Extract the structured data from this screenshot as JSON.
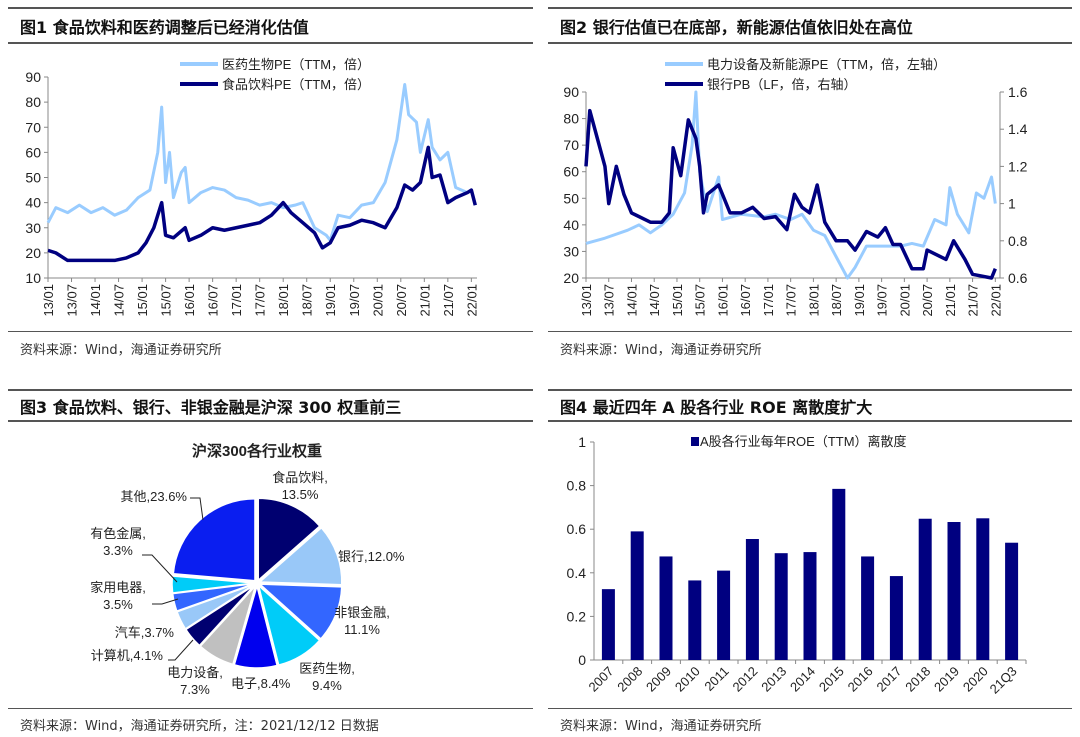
{
  "figures": [
    {
      "title": "图1  食品饮料和医药调整后已经消化估值",
      "source": "资料来源：Wind，海通证券研究所"
    },
    {
      "title": "图2  银行估值已在底部，新能源估值依旧处在高位",
      "source": "资料来源：Wind，海通证券研究所"
    },
    {
      "title": "图3  食品饮料、银行、非银金融是沪深 300 权重前三",
      "source": "资料来源：Wind，海通证券研究所，注：2021/12/12 日数据"
    },
    {
      "title": "图4  最近四年 A 股各行业 ROE 离散度扩大",
      "source": "资料来源：Wind，海通证券研究所"
    }
  ],
  "chart_data": [
    {
      "type": "line",
      "title": "",
      "ylim": [
        10,
        90
      ],
      "yticks": [
        "10",
        "20",
        "30",
        "40",
        "50",
        "60",
        "70",
        "80",
        "90"
      ],
      "xticks": [
        "13/01",
        "13/07",
        "14/01",
        "14/07",
        "15/01",
        "15/07",
        "16/01",
        "16/07",
        "17/01",
        "17/07",
        "18/01",
        "18/07",
        "19/01",
        "19/07",
        "20/01",
        "20/07",
        "21/01",
        "21/07",
        "22/01"
      ],
      "grid": false,
      "legend": "top",
      "series": [
        {
          "name": "医药生物PE（TTM，倍）",
          "color": "#99ccff",
          "x": [
            "2013-01",
            "2013-03",
            "2013-06",
            "2013-09",
            "2013-12",
            "2014-03",
            "2014-06",
            "2014-09",
            "2014-12",
            "2015-03",
            "2015-05",
            "2015-06",
            "2015-07",
            "2015-08",
            "2015-09",
            "2015-11",
            "2015-12",
            "2016-01",
            "2016-04",
            "2016-07",
            "2016-10",
            "2017-01",
            "2017-04",
            "2017-07",
            "2017-10",
            "2018-01",
            "2018-04",
            "2018-06",
            "2018-09",
            "2018-12",
            "2019-01",
            "2019-03",
            "2019-06",
            "2019-09",
            "2019-12",
            "2020-03",
            "2020-06",
            "2020-08",
            "2020-09",
            "2020-11",
            "2020-12",
            "2021-02",
            "2021-03",
            "2021-05",
            "2021-07",
            "2021-09",
            "2021-12",
            "2022-01",
            "2022-02"
          ],
          "y": [
            32,
            38,
            36,
            39,
            36,
            38,
            35,
            37,
            42,
            45,
            60,
            78,
            48,
            60,
            42,
            52,
            54,
            40,
            44,
            46,
            45,
            42,
            41,
            39,
            40,
            38,
            39,
            40,
            30,
            27,
            25,
            35,
            34,
            39,
            40,
            48,
            65,
            87,
            75,
            72,
            60,
            73,
            62,
            57,
            60,
            46,
            44,
            45,
            39
          ]
        },
        {
          "name": "食品饮料PE（TTM，倍）",
          "color": "#000080",
          "x": [
            "2013-01",
            "2013-03",
            "2013-06",
            "2013-12",
            "2014-06",
            "2014-09",
            "2014-12",
            "2015-02",
            "2015-04",
            "2015-06",
            "2015-07",
            "2015-09",
            "2015-12",
            "2016-01",
            "2016-04",
            "2016-07",
            "2016-10",
            "2017-01",
            "2017-04",
            "2017-07",
            "2017-10",
            "2018-01",
            "2018-03",
            "2018-06",
            "2018-09",
            "2018-11",
            "2019-01",
            "2019-03",
            "2019-06",
            "2019-09",
            "2019-12",
            "2020-03",
            "2020-06",
            "2020-08",
            "2020-10",
            "2020-12",
            "2021-02",
            "2021-03",
            "2021-05",
            "2021-07",
            "2021-09",
            "2021-12",
            "2022-01",
            "2022-02"
          ],
          "y": [
            21,
            20,
            17,
            17,
            17,
            18,
            20,
            24,
            30,
            40,
            27,
            26,
            30,
            25,
            27,
            30,
            29,
            30,
            31,
            32,
            35,
            40,
            36,
            32,
            28,
            22,
            24,
            30,
            31,
            33,
            32,
            30,
            38,
            47,
            45,
            48,
            62,
            50,
            51,
            40,
            42,
            44,
            45,
            39
          ]
        }
      ]
    },
    {
      "type": "line",
      "title": "",
      "ylim": [
        20,
        90
      ],
      "y2lim": [
        0.6,
        1.6
      ],
      "yticks": [
        "20",
        "30",
        "40",
        "50",
        "60",
        "70",
        "80",
        "90"
      ],
      "y2ticks": [
        "0.6",
        "0.8",
        "1",
        "1.2",
        "1.4",
        "1.6"
      ],
      "xticks": [
        "13/01",
        "13/07",
        "14/01",
        "14/07",
        "15/01",
        "15/07",
        "16/01",
        "16/07",
        "17/01",
        "17/07",
        "18/01",
        "18/07",
        "19/01",
        "19/07",
        "20/01",
        "20/07",
        "21/01",
        "21/07",
        "22/01"
      ],
      "grid": false,
      "legend": "top",
      "series": [
        {
          "name": "电力设备及新能源PE（TTM，倍，左轴）",
          "color": "#99ccff",
          "axis": "left",
          "x": [
            "2013-01",
            "2013-06",
            "2013-12",
            "2014-03",
            "2014-06",
            "2014-09",
            "2014-12",
            "2015-03",
            "2015-05",
            "2015-06",
            "2015-07",
            "2015-09",
            "2015-12",
            "2016-01",
            "2016-06",
            "2016-12",
            "2017-03",
            "2017-07",
            "2017-10",
            "2018-01",
            "2018-04",
            "2018-07",
            "2018-10",
            "2018-12",
            "2019-03",
            "2019-06",
            "2019-12",
            "2020-03",
            "2020-06",
            "2020-09",
            "2020-12",
            "2021-01",
            "2021-03",
            "2021-06",
            "2021-08",
            "2021-10",
            "2021-12",
            "2022-01"
          ],
          "y": [
            33,
            35,
            38,
            40,
            37,
            40,
            44,
            52,
            70,
            90,
            60,
            45,
            58,
            42,
            44,
            43,
            44,
            42,
            44,
            38,
            36,
            28,
            20,
            24,
            32,
            32,
            32,
            33,
            32,
            42,
            40,
            54,
            44,
            37,
            52,
            50,
            58,
            48
          ]
        },
        {
          "name": "银行PB（LF，倍，右轴）",
          "color": "#000080",
          "axis": "right",
          "x": [
            "2013-01",
            "2013-02",
            "2013-04",
            "2013-06",
            "2013-07",
            "2013-09",
            "2013-11",
            "2014-01",
            "2014-06",
            "2014-09",
            "2014-11",
            "2014-12",
            "2015-02",
            "2015-04",
            "2015-06",
            "2015-07",
            "2015-08",
            "2015-09",
            "2015-12",
            "2016-03",
            "2016-06",
            "2016-09",
            "2016-12",
            "2017-03",
            "2017-06",
            "2017-08",
            "2017-10",
            "2017-12",
            "2018-02",
            "2018-04",
            "2018-07",
            "2018-10",
            "2018-12",
            "2019-03",
            "2019-06",
            "2019-08",
            "2019-10",
            "2019-12",
            "2020-03",
            "2020-06",
            "2020-07",
            "2020-12",
            "2021-02",
            "2021-05",
            "2021-07",
            "2021-12",
            "2022-01"
          ],
          "y": [
            1.2,
            1.5,
            1.35,
            1.2,
            1.0,
            1.2,
            1.05,
            0.95,
            0.9,
            0.9,
            0.95,
            1.3,
            1.15,
            1.45,
            1.35,
            1.2,
            0.95,
            1.05,
            1.1,
            0.95,
            0.95,
            0.98,
            0.92,
            0.93,
            0.86,
            1.05,
            0.98,
            0.95,
            1.1,
            0.9,
            0.8,
            0.8,
            0.75,
            0.85,
            0.82,
            0.87,
            0.78,
            0.78,
            0.65,
            0.65,
            0.75,
            0.7,
            0.8,
            0.7,
            0.62,
            0.6,
            0.65
          ]
        }
      ]
    },
    {
      "type": "pie",
      "title": "沪深300各行业权重",
      "slices": [
        {
          "label": "食品饮料,",
          "pct": "13.5%",
          "value": 13.5,
          "color": "#000070"
        },
        {
          "label": "银行,",
          "pct": "12.0%",
          "value": 12.0,
          "color": "#99c8f8"
        },
        {
          "label": "非银金融,",
          "pct": "11.1%",
          "value": 11.1,
          "color": "#3366ff"
        },
        {
          "label": "医药生物,",
          "pct": "9.4%",
          "value": 9.4,
          "color": "#00ccf8"
        },
        {
          "label": "电子,",
          "pct": "8.4%",
          "value": 8.4,
          "color": "#0000ee"
        },
        {
          "label": "电力设备,",
          "pct": "7.3%",
          "value": 7.3,
          "color": "#c0c0c0"
        },
        {
          "label": "计算机,",
          "pct": "4.1%",
          "value": 4.1,
          "color": "#000070"
        },
        {
          "label": "汽车,",
          "pct": "3.7%",
          "value": 3.7,
          "color": "#99c8f8"
        },
        {
          "label": "家用电器,",
          "pct": "3.5%",
          "value": 3.5,
          "color": "#3366ff"
        },
        {
          "label": "有色金属,",
          "pct": "3.3%",
          "value": 3.3,
          "color": "#00ccf8"
        },
        {
          "label": "其他,",
          "pct": "23.6%",
          "value": 23.6,
          "color": "#0a1ef0"
        }
      ]
    },
    {
      "type": "bar",
      "title": "",
      "legend": "top",
      "series": [
        {
          "name": "A股各行业每年ROE（TTM）离散度",
          "color": "#000080",
          "values": [
            0.325,
            0.59,
            0.475,
            0.365,
            0.41,
            0.555,
            0.49,
            0.495,
            0.785,
            0.475,
            0.385,
            0.648,
            0.633,
            0.65,
            0.538
          ]
        }
      ],
      "categories": [
        "2007",
        "2008",
        "2009",
        "2010",
        "2011",
        "2012",
        "2013",
        "2014",
        "2015",
        "2016",
        "2017",
        "2018",
        "2019",
        "2020",
        "21Q3"
      ],
      "ylim": [
        0,
        1
      ],
      "yticks": [
        "0",
        "0.2",
        "0.4",
        "0.6",
        "0.8",
        "1"
      ],
      "grid": false
    }
  ]
}
